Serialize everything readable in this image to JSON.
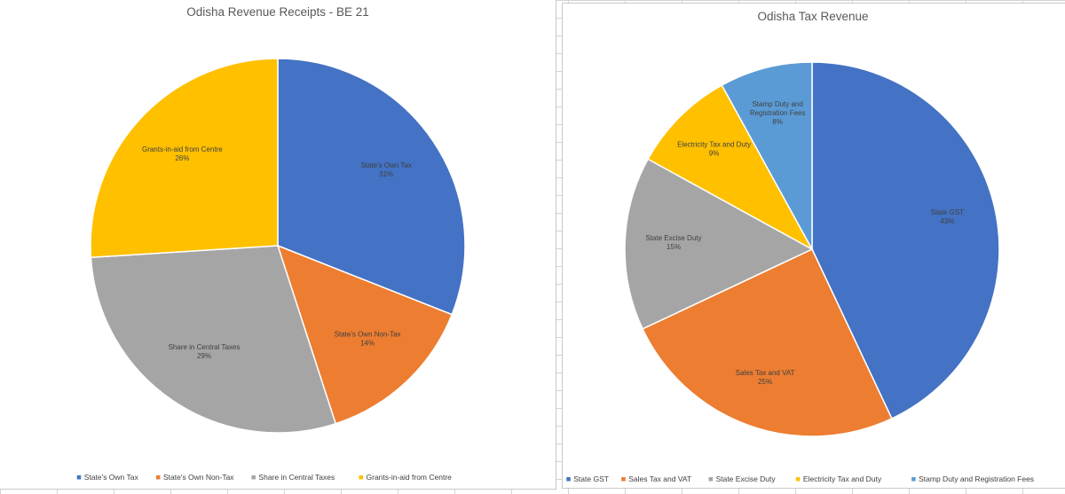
{
  "chart_data": [
    {
      "type": "pie",
      "title": "Odisha Revenue Receipts - BE 21",
      "legend_position": "bottom",
      "series": [
        {
          "name": "State's Own Tax",
          "value": 31,
          "label": "31%",
          "color": "#4472C4"
        },
        {
          "name": "State's Own Non-Tax",
          "value": 14,
          "label": "14%",
          "color": "#ED7D31"
        },
        {
          "name": "Share in Central Taxes",
          "value": 29,
          "label": "29%",
          "color": "#A5A5A5"
        },
        {
          "name": "Grants-in-aid from Centre",
          "value": 26,
          "label": "26%",
          "color": "#FFC000"
        }
      ]
    },
    {
      "type": "pie",
      "title": "Odisha Tax Revenue",
      "legend_position": "bottom",
      "series": [
        {
          "name": "State GST",
          "value": 43,
          "label": "43%",
          "color": "#4472C4"
        },
        {
          "name": "Sales Tax and VAT",
          "value": 25,
          "label": "25%",
          "color": "#ED7D31"
        },
        {
          "name": "State Excise Duty",
          "value": 15,
          "label": "15%",
          "color": "#A5A5A5"
        },
        {
          "name": "Electricity Tax and Duty",
          "value": 9,
          "label": "9%",
          "color": "#FFC000"
        },
        {
          "name": "Stamp Duty and Registration Fees",
          "value": 8,
          "label": "8%",
          "color": "#5B9BD5"
        }
      ]
    }
  ]
}
